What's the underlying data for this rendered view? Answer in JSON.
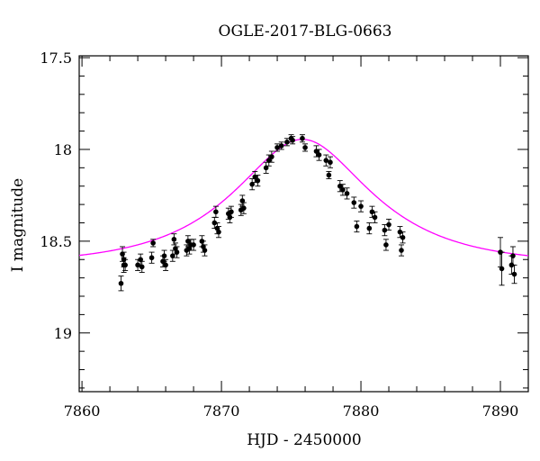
{
  "chart_data": {
    "type": "scatter",
    "title": "OGLE-2017-BLG-0663",
    "xlabel": "HJD - 2450000",
    "ylabel": "I magnitude",
    "xlim": [
      7859.8,
      7892
    ],
    "ylim": [
      19.32,
      17.49
    ],
    "y_inverted": true,
    "x_ticks": [
      "7860",
      "7870",
      "7880",
      "7890"
    ],
    "y_ticks": [
      "17.5",
      "18",
      "18.5",
      "19"
    ],
    "grid": false,
    "colors": {
      "points": "#000000",
      "model": "#ff00ff"
    },
    "series": [
      {
        "kind": "points_with_errorbars",
        "x": [
          7862.8,
          7862.9,
          7863.0,
          7863.0,
          7863.1,
          7864.0,
          7864.2,
          7864.3,
          7865.0,
          7865.1,
          7865.8,
          7865.9,
          7866.0,
          7866.5,
          7866.6,
          7866.7,
          7866.8,
          7867.5,
          7867.6,
          7867.7,
          7867.8,
          7868.0,
          7868.6,
          7868.7,
          7868.8,
          7869.5,
          7869.6,
          7869.7,
          7869.8,
          7870.5,
          7870.6,
          7870.7,
          7871.4,
          7871.5,
          7871.6,
          7872.2,
          7872.4,
          7872.6,
          7873.2,
          7873.4,
          7873.6,
          7874.0,
          7874.3,
          7874.7,
          7875.0,
          7875.1,
          7875.8,
          7876.0,
          7876.8,
          7877.0,
          7877.5,
          7877.7,
          7877.8,
          7878.5,
          7878.7,
          7879.0,
          7879.5,
          7879.7,
          7880.0,
          7880.6,
          7880.8,
          7881.0,
          7881.7,
          7881.8,
          7882.0,
          7882.8,
          7882.9,
          7883.0,
          7890.0,
          7890.1,
          7890.8,
          7890.9,
          7891.0
        ],
        "y": [
          18.73,
          18.57,
          18.6,
          18.63,
          18.63,
          18.63,
          18.6,
          18.64,
          18.59,
          18.51,
          18.61,
          18.58,
          18.63,
          18.58,
          18.49,
          18.54,
          18.56,
          18.55,
          18.5,
          18.54,
          18.52,
          18.52,
          18.5,
          18.53,
          18.55,
          18.4,
          18.34,
          18.43,
          18.45,
          18.35,
          18.37,
          18.34,
          18.33,
          18.28,
          18.32,
          18.19,
          18.15,
          18.17,
          18.1,
          18.06,
          18.04,
          17.99,
          17.98,
          17.96,
          17.94,
          17.95,
          17.94,
          17.99,
          18.01,
          18.03,
          18.06,
          18.14,
          18.07,
          18.2,
          18.22,
          18.24,
          18.29,
          18.42,
          18.31,
          18.43,
          18.34,
          18.37,
          18.44,
          18.52,
          18.41,
          18.45,
          18.55,
          18.48,
          18.56,
          18.65,
          18.63,
          18.58,
          18.68
        ],
        "yerr": [
          0.04,
          0.04,
          0.04,
          0.04,
          0.03,
          0.03,
          0.03,
          0.03,
          0.03,
          0.02,
          0.03,
          0.03,
          0.03,
          0.03,
          0.03,
          0.03,
          0.03,
          0.03,
          0.03,
          0.03,
          0.03,
          0.03,
          0.03,
          0.03,
          0.03,
          0.03,
          0.03,
          0.03,
          0.03,
          0.03,
          0.03,
          0.03,
          0.03,
          0.03,
          0.03,
          0.03,
          0.03,
          0.03,
          0.03,
          0.03,
          0.03,
          0.02,
          0.02,
          0.02,
          0.02,
          0.02,
          0.02,
          0.02,
          0.03,
          0.03,
          0.03,
          0.02,
          0.03,
          0.03,
          0.03,
          0.03,
          0.03,
          0.03,
          0.03,
          0.03,
          0.03,
          0.03,
          0.03,
          0.03,
          0.03,
          0.03,
          0.03,
          0.03,
          0.08,
          0.09,
          0.05,
          0.05,
          0.05
        ]
      },
      {
        "kind": "model_curve",
        "model": "paczynski",
        "baseline_mag": 18.63,
        "peak_mag": 17.945,
        "t0": 7875.8,
        "u0": 0.56,
        "tE": 8.0
      }
    ]
  }
}
